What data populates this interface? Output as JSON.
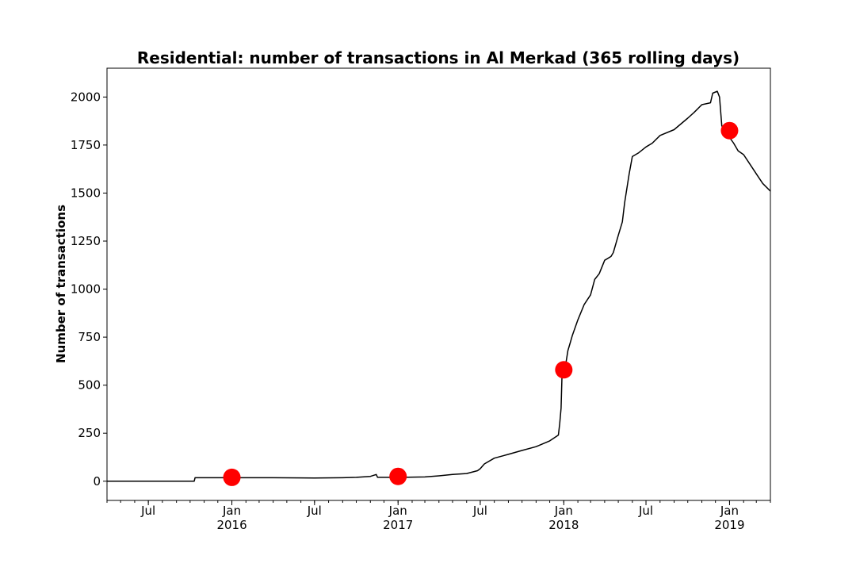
{
  "chart_data": {
    "type": "line",
    "title": "Residential: number of transactions in Al Merkad (365 rolling days)",
    "xlabel": "",
    "ylabel": "Number of transactions",
    "xlim": [
      "2015-04-01",
      "2019-04-01"
    ],
    "ylim": [
      -100,
      2150
    ],
    "y_ticks": [
      0,
      250,
      500,
      750,
      1000,
      1250,
      1500,
      1750,
      2000
    ],
    "x_ticks": [
      {
        "date": "2015-07-01",
        "label": "Jul",
        "sublabel": ""
      },
      {
        "date": "2016-01-01",
        "label": "Jan",
        "sublabel": "2016"
      },
      {
        "date": "2016-07-01",
        "label": "Jul",
        "sublabel": ""
      },
      {
        "date": "2017-01-01",
        "label": "Jan",
        "sublabel": "2017"
      },
      {
        "date": "2017-07-01",
        "label": "Jul",
        "sublabel": ""
      },
      {
        "date": "2018-01-01",
        "label": "Jan",
        "sublabel": "2018"
      },
      {
        "date": "2018-07-01",
        "label": "Jul",
        "sublabel": ""
      },
      {
        "date": "2019-01-01",
        "label": "Jan",
        "sublabel": "2019"
      }
    ],
    "grid": false,
    "series": [
      {
        "color": "#000000",
        "x": [
          "2015-04-01",
          "2015-10-10",
          "2015-10-12",
          "2016-01-01",
          "2016-04-01",
          "2016-07-01",
          "2016-09-01",
          "2016-10-01",
          "2016-11-01",
          "2016-11-14",
          "2016-11-17",
          "2017-01-01",
          "2017-03-01",
          "2017-04-01",
          "2017-05-01",
          "2017-06-01",
          "2017-06-25",
          "2017-07-01",
          "2017-07-10",
          "2017-08-01",
          "2017-09-01",
          "2017-10-01",
          "2017-11-01",
          "2017-12-01",
          "2017-12-20",
          "2017-12-23",
          "2017-12-26",
          "2017-12-28",
          "2018-01-01",
          "2018-01-06",
          "2018-01-10",
          "2018-01-15",
          "2018-01-20",
          "2018-02-01",
          "2018-02-15",
          "2018-03-01",
          "2018-03-10",
          "2018-03-20",
          "2018-04-01",
          "2018-04-15",
          "2018-04-20",
          "2018-05-01",
          "2018-05-10",
          "2018-05-15",
          "2018-05-25",
          "2018-06-01",
          "2018-06-15",
          "2018-07-01",
          "2018-07-15",
          "2018-08-01",
          "2018-09-01",
          "2018-10-01",
          "2018-10-15",
          "2018-11-01",
          "2018-11-20",
          "2018-11-25",
          "2018-12-05",
          "2018-12-10",
          "2018-12-15",
          "2018-12-20",
          "2019-01-01",
          "2019-01-10",
          "2019-01-20",
          "2019-02-01",
          "2019-02-15",
          "2019-03-01",
          "2019-03-15",
          "2019-04-01"
        ],
        "y": [
          0,
          0,
          18,
          18,
          18,
          17,
          18,
          20,
          25,
          35,
          20,
          20,
          22,
          28,
          35,
          40,
          55,
          65,
          90,
          120,
          140,
          160,
          180,
          210,
          240,
          300,
          380,
          540,
          575,
          620,
          680,
          720,
          760,
          840,
          920,
          970,
          1050,
          1080,
          1150,
          1170,
          1190,
          1280,
          1350,
          1450,
          1600,
          1690,
          1710,
          1740,
          1760,
          1800,
          1830,
          1890,
          1920,
          1960,
          1970,
          2020,
          2030,
          2000,
          1850,
          1830,
          1790,
          1760,
          1720,
          1700,
          1650,
          1600,
          1550,
          1510
        ]
      }
    ],
    "markers": {
      "color": "#ff0000",
      "x": [
        "2016-01-01",
        "2017-01-01",
        "2018-01-01",
        "2019-01-01"
      ],
      "y": [
        20,
        25,
        580,
        1825
      ]
    }
  }
}
